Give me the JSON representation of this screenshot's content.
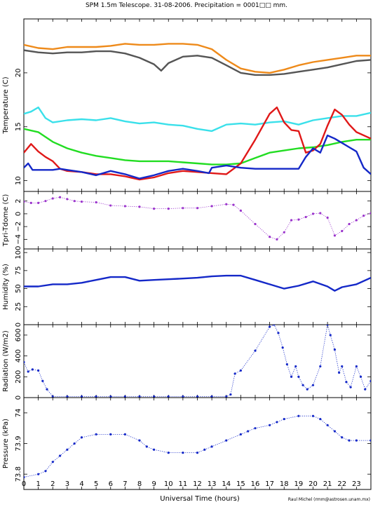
{
  "title": "SPM 1.5m Telescope. 31-08-2006. Precipitation = 0001□□ mm.",
  "credit": "Raul Michel (rmm@astrosen.unam.mx)",
  "chart_data": [
    {
      "type": "line",
      "panel": "temperature",
      "ylabel": "Temperature (C)",
      "ylim": [
        9,
        25
      ],
      "yticks": [
        10,
        15,
        20
      ],
      "series": [
        {
          "color": "#ee8a1a",
          "x": [
            0,
            1,
            2,
            3,
            4,
            5,
            6,
            7,
            8,
            9,
            10,
            11,
            12,
            13,
            14,
            15,
            16,
            17,
            18,
            19,
            20,
            21,
            22,
            23,
            24
          ],
          "y": [
            22.6,
            22.3,
            22.2,
            22.4,
            22.4,
            22.4,
            22.5,
            22.7,
            22.6,
            22.6,
            22.7,
            22.7,
            22.6,
            22.2,
            21.2,
            20.4,
            20.1,
            20.0,
            20.3,
            20.7,
            21.0,
            21.2,
            21.4,
            21.6,
            21.6
          ]
        },
        {
          "color": "#555555",
          "x": [
            0,
            1,
            2,
            3,
            4,
            5,
            6,
            7,
            8,
            9,
            9.5,
            10,
            11,
            12,
            13,
            14,
            15,
            16,
            17,
            18,
            19,
            20,
            21,
            22,
            23,
            24
          ],
          "y": [
            22.1,
            21.9,
            21.8,
            21.9,
            21.9,
            22.0,
            22.0,
            21.8,
            21.4,
            20.8,
            20.2,
            20.9,
            21.5,
            21.6,
            21.4,
            20.7,
            20.0,
            19.8,
            19.8,
            19.9,
            20.1,
            20.3,
            20.5,
            20.8,
            21.1,
            21.2
          ]
        },
        {
          "color": "#3ae0ea",
          "x": [
            0,
            0.5,
            1,
            1.5,
            2,
            3,
            4,
            5,
            6,
            7,
            8,
            9,
            10,
            11,
            12,
            13,
            14,
            15,
            16,
            17,
            18,
            19,
            20,
            21,
            22,
            23,
            24
          ],
          "y": [
            16.2,
            16.4,
            16.8,
            15.8,
            15.4,
            15.6,
            15.7,
            15.6,
            15.8,
            15.5,
            15.3,
            15.4,
            15.2,
            15.1,
            14.8,
            14.6,
            15.2,
            15.3,
            15.2,
            15.4,
            15.5,
            15.2,
            15.6,
            15.8,
            16.0,
            16.0,
            16.3
          ]
        },
        {
          "color": "#22dd22",
          "x": [
            0,
            1,
            2,
            3,
            4,
            5,
            6,
            7,
            8,
            9,
            10,
            11,
            12,
            13,
            14,
            15,
            16,
            17,
            18,
            19,
            20,
            21,
            22,
            23,
            24
          ],
          "y": [
            14.8,
            14.5,
            13.6,
            13.0,
            12.6,
            12.3,
            12.1,
            11.9,
            11.8,
            11.8,
            11.8,
            11.7,
            11.6,
            11.5,
            11.5,
            11.6,
            12.1,
            12.6,
            12.8,
            13.0,
            13.1,
            13.3,
            13.6,
            13.8,
            13.8
          ]
        },
        {
          "color": "#e01818",
          "x": [
            0,
            0.5,
            1,
            1.5,
            2,
            2.5,
            3,
            4,
            5,
            6,
            7,
            8,
            9,
            10,
            11,
            12,
            13,
            14,
            15,
            16,
            17,
            17.5,
            18,
            18.5,
            19,
            19.5,
            20,
            20.5,
            21,
            21.5,
            22,
            22.5,
            23,
            24
          ],
          "y": [
            12.6,
            13.4,
            12.7,
            12.2,
            11.8,
            11.1,
            10.9,
            10.8,
            10.6,
            10.6,
            10.4,
            10.1,
            10.3,
            10.7,
            10.9,
            10.8,
            10.7,
            10.6,
            11.6,
            13.8,
            16.2,
            16.8,
            15.4,
            14.7,
            14.6,
            12.6,
            12.8,
            13.4,
            15.1,
            16.6,
            16.1,
            15.2,
            14.5,
            13.9
          ]
        },
        {
          "color": "#1428c8",
          "x": [
            0,
            0.3,
            0.6,
            1,
            2,
            2.5,
            3,
            4,
            5,
            6,
            7,
            8,
            9,
            10,
            11,
            12,
            12.8,
            13,
            14,
            15,
            16,
            17,
            18,
            19,
            19.5,
            20,
            20.5,
            21,
            21.5,
            22,
            22.5,
            23,
            23.5,
            24
          ],
          "y": [
            11.2,
            11.6,
            11.0,
            11.0,
            11.0,
            11.1,
            11.0,
            10.8,
            10.5,
            10.9,
            10.6,
            10.2,
            10.5,
            10.9,
            11.1,
            10.9,
            10.7,
            11.2,
            11.4,
            11.2,
            11.1,
            11.1,
            11.1,
            11.1,
            12.2,
            13.0,
            12.6,
            14.2,
            13.9,
            13.5,
            13.1,
            12.7,
            11.2,
            10.6
          ]
        }
      ]
    },
    {
      "type": "scatter",
      "panel": "tpri-tdome",
      "ylabel": "Tpri-Tdome (C)",
      "ylim": [
        -5.5,
        3.5
      ],
      "yticks": [
        -4,
        -2,
        0,
        2
      ],
      "series": [
        {
          "color": "#9a33cc",
          "x": [
            0,
            0.5,
            1,
            1.5,
            2,
            2.5,
            3,
            3.5,
            4,
            5,
            6,
            7,
            8,
            9,
            10,
            11,
            12,
            13,
            14,
            14.5,
            15,
            16,
            17,
            17.5,
            18,
            18.5,
            19,
            19.5,
            20,
            20.5,
            21,
            21.5,
            22,
            22.5,
            23,
            23.5,
            24
          ],
          "y": [
            1.9,
            1.7,
            1.7,
            2.0,
            2.4,
            2.6,
            2.3,
            2.0,
            1.9,
            1.8,
            1.3,
            1.2,
            1.1,
            0.8,
            0.8,
            0.9,
            0.9,
            1.2,
            1.5,
            1.4,
            0.5,
            -1.6,
            -3.6,
            -4.0,
            -2.9,
            -1.0,
            -0.9,
            -0.5,
            0.0,
            0.1,
            -0.6,
            -3.4,
            -2.7,
            -1.6,
            -1.0,
            -0.3,
            0.1
          ]
        }
      ]
    },
    {
      "type": "line",
      "panel": "humidity",
      "ylabel": "Humidity (%)",
      "ylim": [
        0,
        105
      ],
      "yticks": [
        0,
        25,
        50,
        75,
        100
      ],
      "series": [
        {
          "color": "#1428c8",
          "x": [
            0,
            1,
            2,
            3,
            4,
            5,
            6,
            7,
            8,
            9,
            10,
            11,
            12,
            13,
            14,
            15,
            16,
            17,
            18,
            19,
            20,
            21,
            21.5,
            22,
            23,
            24
          ],
          "y": [
            53,
            53,
            56,
            56,
            58,
            62,
            66,
            66,
            61,
            62,
            63,
            64,
            65,
            67,
            68,
            68,
            62,
            56,
            50,
            54,
            60,
            53,
            47,
            52,
            56,
            65
          ]
        }
      ]
    },
    {
      "type": "scatter",
      "panel": "radiation",
      "ylabel": "Radiation (W/m2)",
      "ylim": [
        0,
        700
      ],
      "yticks": [
        0,
        200,
        400,
        600
      ],
      "series": [
        {
          "color": "#1428c8",
          "x": [
            0,
            0.3,
            0.6,
            1,
            1.3,
            1.6,
            2,
            3,
            4,
            5,
            6,
            7,
            8,
            9,
            10,
            11,
            12,
            13,
            14,
            14.3,
            14.6,
            15,
            16,
            17,
            17.3,
            17.6,
            17.9,
            18.2,
            18.5,
            18.8,
            19,
            19.3,
            19.6,
            20,
            20.5,
            21,
            21.2,
            21.5,
            21.8,
            22,
            22.3,
            22.6,
            23,
            23.3,
            23.6,
            24
          ],
          "y": [
            340,
            250,
            270,
            260,
            160,
            80,
            10,
            10,
            10,
            10,
            10,
            10,
            10,
            10,
            10,
            10,
            10,
            10,
            10,
            30,
            230,
            260,
            450,
            680,
            700,
            620,
            480,
            320,
            200,
            300,
            200,
            120,
            80,
            120,
            300,
            700,
            600,
            460,
            240,
            300,
            150,
            100,
            300,
            200,
            80,
            160
          ]
        }
      ]
    },
    {
      "type": "scatter",
      "panel": "pressure",
      "ylabel": "Pressure (kPa)",
      "ylim": [
        73.75,
        74.05
      ],
      "yticks": [
        73.8,
        73.9,
        74.0
      ],
      "series": [
        {
          "color": "#1428c8",
          "x": [
            0,
            1,
            1.5,
            2,
            2.5,
            3,
            3.5,
            4,
            5,
            6,
            7,
            8,
            8.5,
            9,
            10,
            11,
            12,
            12.5,
            13,
            14,
            15,
            15.5,
            16,
            17,
            17.5,
            18,
            19,
            20,
            20.5,
            21,
            21.5,
            22,
            22.5,
            23,
            24
          ],
          "y": [
            73.79,
            73.8,
            73.81,
            73.84,
            73.86,
            73.88,
            73.9,
            73.92,
            73.93,
            73.93,
            73.93,
            73.91,
            73.89,
            73.88,
            73.87,
            73.87,
            73.87,
            73.88,
            73.89,
            73.91,
            73.93,
            73.94,
            73.95,
            73.96,
            73.97,
            73.98,
            73.99,
            73.99,
            73.98,
            73.96,
            73.94,
            73.92,
            73.91,
            73.91,
            73.91
          ]
        }
      ]
    }
  ],
  "xaxis": {
    "label": "Universal Time (hours)",
    "xlim": [
      0,
      24
    ],
    "ticks": [
      0,
      1,
      2,
      3,
      4,
      5,
      6,
      7,
      8,
      9,
      10,
      11,
      12,
      13,
      14,
      15,
      16,
      17,
      18,
      19,
      20,
      21,
      22,
      23
    ]
  }
}
